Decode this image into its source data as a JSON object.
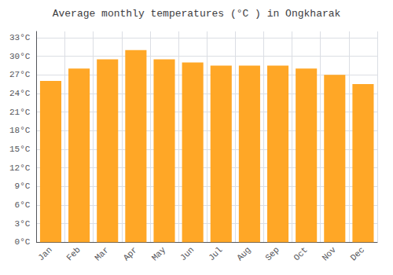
{
  "chart_data": {
    "type": "bar",
    "title": "Average monthly temperatures (°C ) in Ongkharak",
    "categories": [
      "Jan",
      "Feb",
      "Mar",
      "Apr",
      "May",
      "Jun",
      "Jul",
      "Aug",
      "Sep",
      "Oct",
      "Nov",
      "Dec"
    ],
    "values": [
      26.0,
      28.0,
      29.5,
      31.0,
      29.5,
      29.0,
      28.5,
      28.5,
      28.5,
      28.0,
      27.0,
      25.5
    ],
    "color": "#FFA726",
    "ylim": [
      0,
      34
    ],
    "yticks": [
      {
        "value": 0,
        "label": "0°C"
      },
      {
        "value": 3,
        "label": "3°C"
      },
      {
        "value": 6,
        "label": "6°C"
      },
      {
        "value": 9,
        "label": "9°C"
      },
      {
        "value": 12,
        "label": "12°C"
      },
      {
        "value": 15,
        "label": "15°C"
      },
      {
        "value": 18,
        "label": "18°C"
      },
      {
        "value": 21,
        "label": "21°C"
      },
      {
        "value": 24,
        "label": "24°C"
      },
      {
        "value": 27,
        "label": "27°C"
      },
      {
        "value": 30,
        "label": "30°C"
      },
      {
        "value": 33,
        "label": "33°C"
      }
    ],
    "grid": true
  }
}
